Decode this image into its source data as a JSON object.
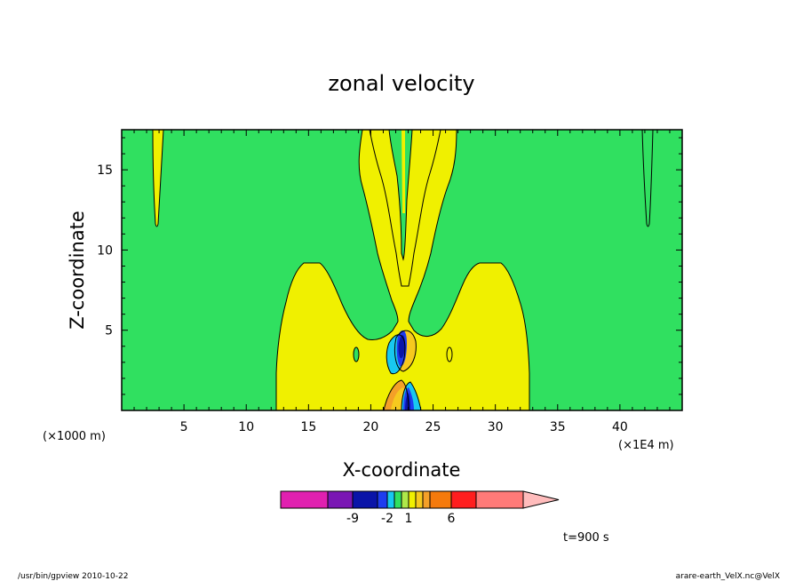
{
  "chart_data": {
    "type": "heatmap",
    "title": "zonal velocity",
    "xlabel": "X-coordinate",
    "ylabel": "Z-coordinate",
    "x_scale_note": "(×1000 m)",
    "x_scale_note_right": "(×1E4 m)",
    "xlim": [
      0,
      45
    ],
    "ylim": [
      0,
      17.5
    ],
    "xticks": [
      5,
      10,
      15,
      20,
      25,
      30,
      35,
      40
    ],
    "yticks": [
      5,
      10,
      15
    ],
    "colorbar": {
      "colors": [
        "#e020b0",
        "#7a16b4",
        "#0a14a8",
        "#1e3cf0",
        "#18c8f0",
        "#30e060",
        "#aee84a",
        "#f0f000",
        "#f6c91e",
        "#f4a028",
        "#f57a0c",
        "#ff1e1e",
        "#ff7a78",
        "#ffbcbc"
      ],
      "labels": [
        "-9",
        "-2",
        "1",
        "6"
      ]
    },
    "time_label": "t=900 s"
  },
  "footer": {
    "left": "/usr/bin/gpview  2010-10-22",
    "right": "arare-earth_VelX.nc@VelX"
  }
}
